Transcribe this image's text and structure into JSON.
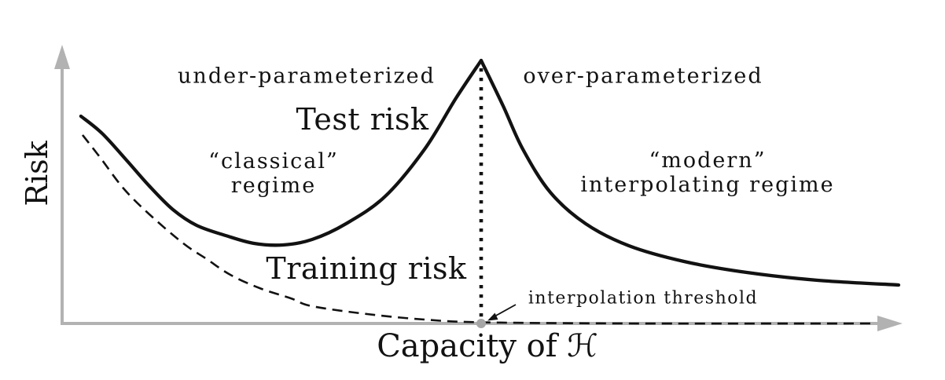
{
  "figure": {
    "background_color": "#ffffff",
    "curve_color": "#121212",
    "axis_color": "#b2b2b2",
    "threshold_marker_color": "#a6a6a6"
  },
  "labels": {
    "y_axis": "Risk",
    "x_axis_prefix": "Capacity of ",
    "x_axis_symbol": "ℋ",
    "region_left": "under-parameterized",
    "region_right": "over-parameterized",
    "test_risk": "Test risk",
    "training_risk": "Training risk",
    "classical_line1": "“classical”",
    "classical_line2": "regime",
    "modern_line1": "“modern”",
    "modern_line2": "interpolating regime",
    "threshold": "interpolation threshold"
  },
  "chart_data": {
    "type": "line",
    "title": "",
    "xlabel": "Capacity of ℋ",
    "ylabel": "Risk",
    "x_ticks": [],
    "y_ticks": [],
    "grid": false,
    "legend_position": "inline-annotations",
    "axes_note": "schematic axes without numeric scale; coordinates below are normalized 0-1 (x = fraction of capacity axis, y = fraction of risk axis height)",
    "threshold_x": 0.4986,
    "series": [
      {
        "name": "Test risk",
        "style": "solid",
        "color": "#121212",
        "branches": [
          [
            [
              0.0224,
              0.75
            ],
            [
              0.0477,
              0.6875
            ],
            [
              0.0758,
              0.5938
            ],
            [
              0.1038,
              0.4972
            ],
            [
              0.1319,
              0.4119
            ],
            [
              0.16,
              0.3551
            ],
            [
              0.1946,
              0.3182
            ],
            [
              0.2283,
              0.2898
            ],
            [
              0.2629,
              0.2841
            ],
            [
              0.2975,
              0.304
            ],
            [
              0.3377,
              0.3608
            ],
            [
              0.3845,
              0.4602
            ],
            [
              0.4313,
              0.6307
            ],
            [
              0.4687,
              0.8153
            ],
            [
              0.4986,
              0.9517
            ]
          ],
          [
            [
              0.4986,
              0.9517
            ],
            [
              0.5248,
              0.7869
            ],
            [
              0.5482,
              0.6307
            ],
            [
              0.5809,
              0.4744
            ],
            [
              0.623,
              0.3608
            ],
            [
              0.6744,
              0.2813
            ],
            [
              0.7399,
              0.2244
            ],
            [
              0.8147,
              0.1847
            ],
            [
              0.8989,
              0.1563
            ],
            [
              0.9953,
              0.1392
            ]
          ]
        ]
      },
      {
        "name": "Training risk",
        "style": "dashed",
        "color": "#121212",
        "branches": [
          [
            [
              0.0243,
              0.682
            ],
            [
              0.0449,
              0.602
            ],
            [
              0.073,
              0.489
            ],
            [
              0.1038,
              0.395
            ],
            [
              0.1441,
              0.29
            ],
            [
              0.1721,
              0.233
            ],
            [
              0.2002,
              0.176
            ],
            [
              0.2348,
              0.128
            ],
            [
              0.2722,
              0.091
            ],
            [
              0.2975,
              0.0625
            ],
            [
              0.363,
              0.034
            ],
            [
              0.4313,
              0.0142
            ],
            [
              0.4986,
              0.0043
            ],
            [
              0.6744,
              0.0
            ],
            [
              0.9626,
              0.0
            ]
          ]
        ]
      }
    ],
    "annotations": [
      {
        "type": "vline",
        "x": 0.4986,
        "style": "dotted",
        "color": "#121212"
      },
      {
        "type": "marker",
        "shape": "filled-circle",
        "x": 0.4986,
        "y": 0.0,
        "color": "#a6a6a6"
      },
      {
        "type": "text-arrow",
        "text": "interpolation threshold",
        "points_to": {
          "x": 0.4986,
          "y": 0.0
        }
      },
      {
        "type": "text",
        "text": "under-parameterized",
        "region": "left-top"
      },
      {
        "type": "text",
        "text": "over-parameterized",
        "region": "right-top"
      },
      {
        "type": "text",
        "text": "“classical” regime",
        "region": "left-middle"
      },
      {
        "type": "text",
        "text": "“modern” interpolating regime",
        "region": "right-middle"
      },
      {
        "type": "text",
        "text": "Test risk",
        "attached_to": "Test risk curve"
      },
      {
        "type": "text",
        "text": "Training risk",
        "attached_to": "Training risk curve"
      }
    ]
  }
}
